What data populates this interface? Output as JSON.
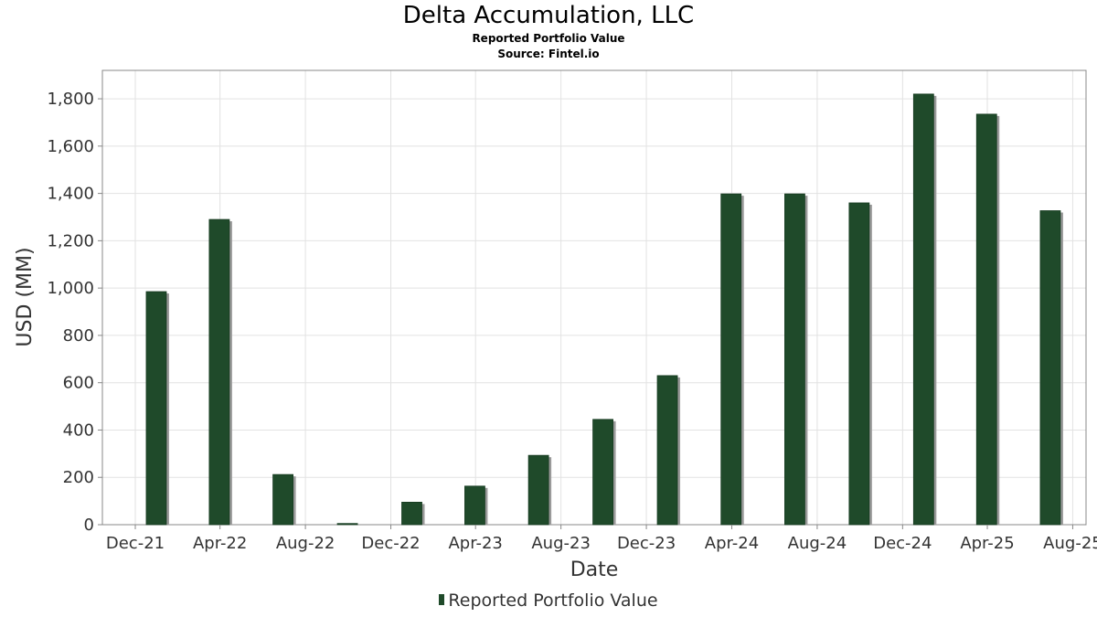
{
  "chart_data": {
    "type": "bar",
    "title": "Delta Accumulation, LLC",
    "subtitle": "Reported Portfolio Value",
    "source": "Source: Fintel.io",
    "xlabel": "Date",
    "ylabel": "USD (MM)",
    "ylim": [
      0,
      1920
    ],
    "yticks": [
      0,
      200,
      400,
      600,
      800,
      1000,
      1200,
      1400,
      1600,
      1800
    ],
    "ytick_labels": [
      "0",
      "200",
      "400",
      "600",
      "800",
      "1,000",
      "1,200",
      "1,400",
      "1,600",
      "1,800"
    ],
    "xlim": [
      "2021-10-15",
      "2025-08-20"
    ],
    "xticks": [
      {
        "date": "2021-12-01",
        "label": "Dec-21"
      },
      {
        "date": "2022-04-01",
        "label": "Apr-22"
      },
      {
        "date": "2022-08-01",
        "label": "Aug-22"
      },
      {
        "date": "2022-12-01",
        "label": "Dec-22"
      },
      {
        "date": "2023-04-01",
        "label": "Apr-23"
      },
      {
        "date": "2023-08-01",
        "label": "Aug-23"
      },
      {
        "date": "2023-12-01",
        "label": "Dec-23"
      },
      {
        "date": "2024-04-01",
        "label": "Apr-24"
      },
      {
        "date": "2024-08-01",
        "label": "Aug-24"
      },
      {
        "date": "2024-12-01",
        "label": "Dec-24"
      },
      {
        "date": "2025-04-01",
        "label": "Apr-25"
      },
      {
        "date": "2025-08-01",
        "label": "Aug-25"
      }
    ],
    "grid": true,
    "legend_position": "bottom-center",
    "series": [
      {
        "name": "Reported Portfolio Value",
        "color": "#1f4a2a",
        "points": [
          {
            "x": "2021-12-31",
            "y": 985
          },
          {
            "x": "2022-03-31",
            "y": 1290
          },
          {
            "x": "2022-06-30",
            "y": 212
          },
          {
            "x": "2022-09-30",
            "y": 5
          },
          {
            "x": "2022-12-31",
            "y": 95
          },
          {
            "x": "2023-03-31",
            "y": 163
          },
          {
            "x": "2023-06-30",
            "y": 293
          },
          {
            "x": "2023-09-30",
            "y": 445
          },
          {
            "x": "2023-12-31",
            "y": 630
          },
          {
            "x": "2024-03-31",
            "y": 1398
          },
          {
            "x": "2024-06-30",
            "y": 1398
          },
          {
            "x": "2024-09-30",
            "y": 1360
          },
          {
            "x": "2024-12-31",
            "y": 1820
          },
          {
            "x": "2025-03-31",
            "y": 1735
          },
          {
            "x": "2025-06-30",
            "y": 1327
          }
        ]
      }
    ]
  }
}
